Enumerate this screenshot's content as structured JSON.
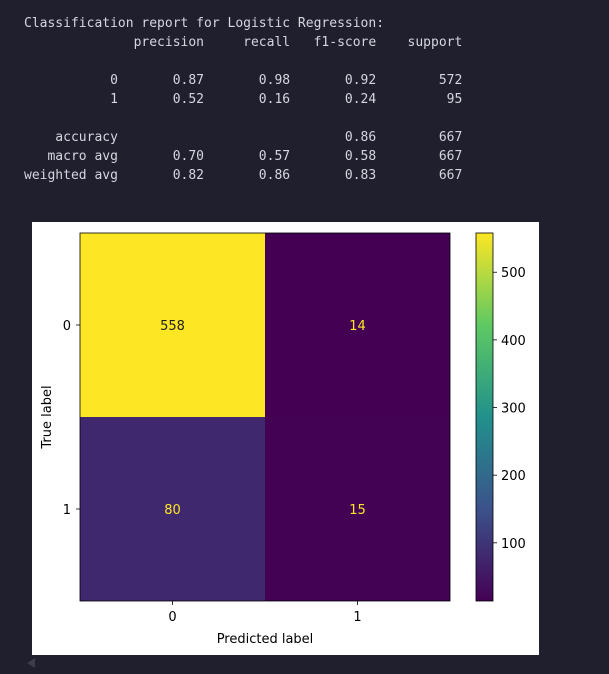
{
  "report": {
    "title": "Classification report for Logistic Regression:",
    "columns": [
      "precision",
      "recall",
      "f1-score",
      "support"
    ],
    "rows": [
      {
        "label": "0",
        "values": [
          "0.87",
          "0.98",
          "0.92",
          "572"
        ]
      },
      {
        "label": "1",
        "values": [
          "0.52",
          "0.16",
          "0.24",
          "95"
        ]
      },
      {
        "label": "",
        "values": [
          "",
          "",
          "",
          ""
        ]
      },
      {
        "label": "accuracy",
        "values": [
          "",
          "",
          "0.86",
          "667"
        ]
      },
      {
        "label": "macro avg",
        "values": [
          "0.70",
          "0.57",
          "0.58",
          "667"
        ]
      },
      {
        "label": "weighted avg",
        "values": [
          "0.82",
          "0.86",
          "0.83",
          "667"
        ]
      }
    ]
  },
  "chart_data": {
    "type": "heatmap",
    "xlabel": "Predicted label",
    "ylabel": "True label",
    "x_categories": [
      "0",
      "1"
    ],
    "y_categories": [
      "0",
      "1"
    ],
    "values": [
      [
        558,
        14
      ],
      [
        80,
        15
      ]
    ],
    "colormap": "viridis",
    "colorbar": {
      "ticks": [
        100,
        200,
        300,
        400,
        500
      ],
      "range": [
        14,
        558
      ]
    },
    "cell_text_color_on_light": "#1f1f1f",
    "cell_text_color_on_dark": "#fde725"
  }
}
